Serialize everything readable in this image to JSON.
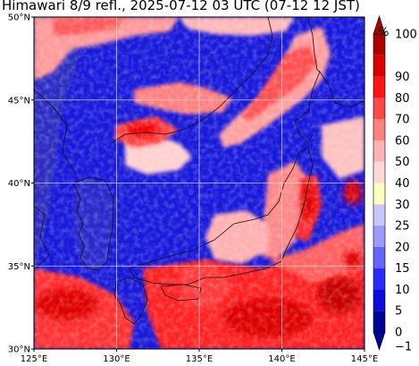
{
  "title": "Himawari 8/9 refl., 2025-07-12 03 UTC (07-12 12 JST)",
  "map": {
    "lon_range": [
      125,
      145
    ],
    "lat_range": [
      30,
      50
    ],
    "lon_ticks": [
      {
        "value": 125,
        "label": "125°E"
      },
      {
        "value": 130,
        "label": "130°E"
      },
      {
        "value": 135,
        "label": "135°E"
      },
      {
        "value": 140,
        "label": "140°E"
      },
      {
        "value": 145,
        "label": "145°E"
      }
    ],
    "lat_ticks": [
      {
        "value": 30,
        "label": "30°N"
      },
      {
        "value": 35,
        "label": "35°N"
      },
      {
        "value": 40,
        "label": "40°N"
      },
      {
        "value": 45,
        "label": "45°N"
      },
      {
        "value": 50,
        "label": "50°N"
      }
    ],
    "gridlines": true
  },
  "colorbar": {
    "unit": "%",
    "levels": [
      -1,
      0,
      5,
      10,
      15,
      20,
      25,
      30,
      40,
      50,
      60,
      70,
      80,
      90,
      100
    ],
    "labels": [
      "−1",
      "0",
      "5",
      "10",
      "15",
      "20",
      "25",
      "30",
      "40",
      "50",
      "60",
      "70",
      "80",
      "90",
      "100"
    ],
    "colors": [
      "#00009a",
      "#0b0bdc",
      "#2a2aff",
      "#6464ff",
      "#9a9aff",
      "#c8c8ff",
      "#ffffc0",
      "#ffd8d8",
      "#ffb2b2",
      "#ff8080",
      "#ff4848",
      "#ff1414",
      "#d80000",
      "#aa0000"
    ],
    "extend": "both"
  }
}
